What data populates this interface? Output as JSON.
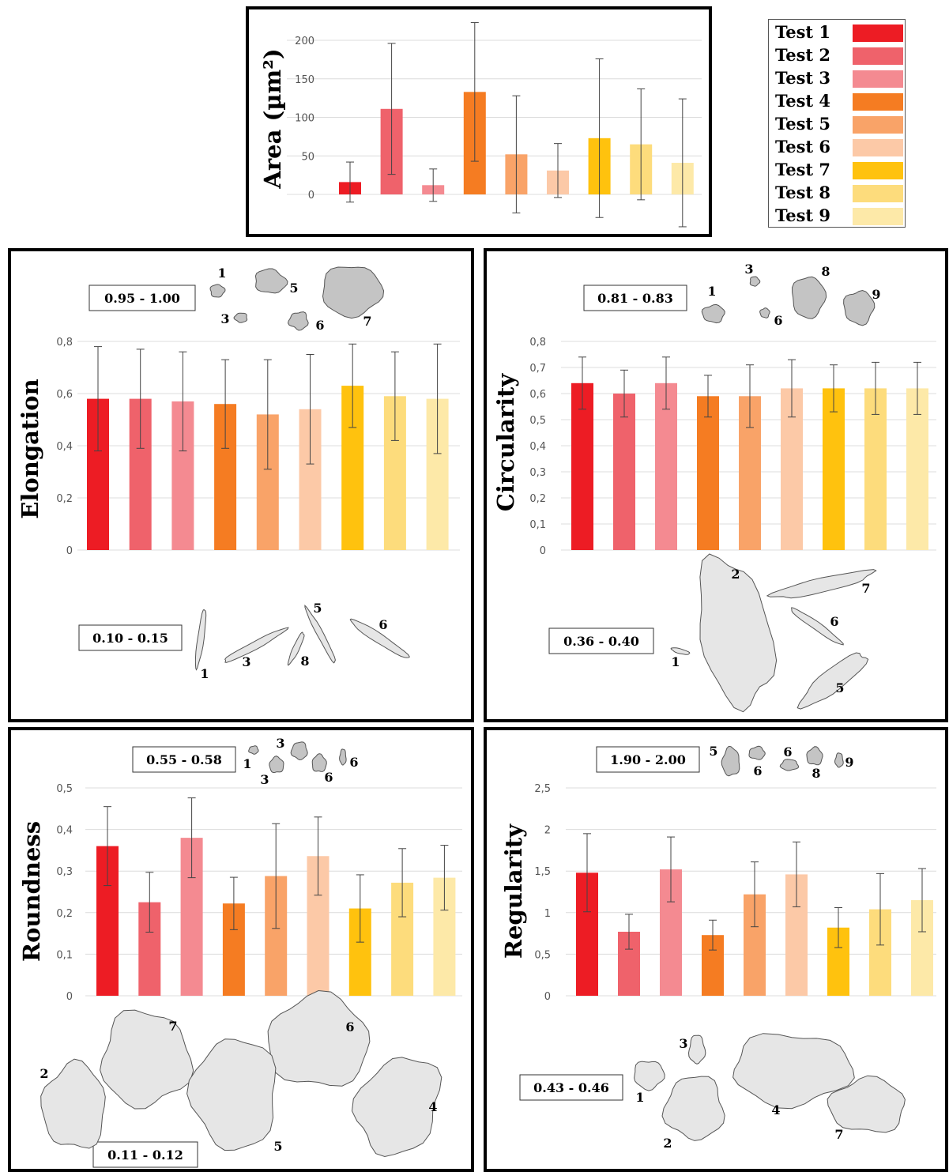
{
  "colors": [
    "#ed1c24",
    "#ef626b",
    "#f48a91",
    "#f57c22",
    "#f9a368",
    "#fcc9a7",
    "#ffc20e",
    "#fddc7c",
    "#fde9a8"
  ],
  "legend": [
    "Test 1",
    "Test 2",
    "Test 3",
    "Test 4",
    "Test 5",
    "Test 6",
    "Test 7",
    "Test 8",
    "Test 9"
  ],
  "chart_data": [
    {
      "type": "bar",
      "ylabel": "Area (µm²)",
      "categories": [
        "Test 1",
        "Test 2",
        "Test 3",
        "Test 4",
        "Test 5",
        "Test 6",
        "Test 7",
        "Test 8",
        "Test 9"
      ],
      "values": [
        16,
        111,
        12,
        133,
        52,
        31,
        73,
        65,
        41
      ],
      "errors": [
        26,
        85,
        21,
        90,
        76,
        35,
        103,
        72,
        83
      ],
      "ylim": [
        0,
        200
      ],
      "yticks": [
        "0",
        "50",
        "100",
        "150",
        "200"
      ]
    },
    {
      "type": "bar",
      "ylabel": "Elongation",
      "categories": [
        "Test 1",
        "Test 2",
        "Test 3",
        "Test 4",
        "Test 5",
        "Test 6",
        "Test 7",
        "Test 8",
        "Test 9"
      ],
      "values": [
        0.58,
        0.58,
        0.57,
        0.56,
        0.52,
        0.54,
        0.63,
        0.59,
        0.58
      ],
      "errors": [
        0.2,
        0.19,
        0.19,
        0.17,
        0.21,
        0.21,
        0.16,
        0.17,
        0.21
      ],
      "ylim": [
        0,
        0.8
      ],
      "yticks": [
        "0",
        "0,2",
        "0,4",
        "0,6",
        "0,8"
      ],
      "annotations": {
        "top_range": "0.95 - 1.00",
        "bottom_range": "0.10 - 0.15",
        "top_ids": [
          "1",
          "5",
          "3",
          "6",
          "7"
        ],
        "bottom_ids": [
          "1",
          "3",
          "5",
          "8",
          "6"
        ]
      }
    },
    {
      "type": "bar",
      "ylabel": "Circularity",
      "categories": [
        "Test 1",
        "Test 2",
        "Test 3",
        "Test 4",
        "Test 5",
        "Test 6",
        "Test 7",
        "Test 8",
        "Test 9"
      ],
      "values": [
        0.64,
        0.6,
        0.64,
        0.59,
        0.59,
        0.62,
        0.62,
        0.62,
        0.62
      ],
      "errors": [
        0.1,
        0.09,
        0.1,
        0.08,
        0.12,
        0.11,
        0.09,
        0.1,
        0.1
      ],
      "ylim": [
        0,
        0.8
      ],
      "yticks": [
        "0",
        "0,1",
        "0,2",
        "0,3",
        "0,4",
        "0,5",
        "0,6",
        "0,7",
        "0,8"
      ],
      "annotations": {
        "top_range": "0.81 - 0.83",
        "bottom_range": "0.36 - 0.40",
        "top_ids": [
          "3",
          "8",
          "1",
          "6",
          "9"
        ],
        "bottom_ids": [
          "2",
          "7",
          "6",
          "1",
          "5"
        ]
      }
    },
    {
      "type": "bar",
      "ylabel": "Roundness",
      "categories": [
        "Test 1",
        "Test 2",
        "Test 3",
        "Test 4",
        "Test 5",
        "Test 6",
        "Test 7",
        "Test 8",
        "Test 9"
      ],
      "values": [
        0.36,
        0.225,
        0.38,
        0.222,
        0.288,
        0.336,
        0.21,
        0.272,
        0.284
      ],
      "errors": [
        0.095,
        0.072,
        0.096,
        0.063,
        0.126,
        0.094,
        0.081,
        0.082,
        0.078
      ],
      "ylim": [
        0,
        0.5
      ],
      "yticks": [
        "0",
        "0,1",
        "0,2",
        "0,3",
        "0,4",
        "0,5"
      ],
      "annotations": {
        "top_range": "0.55 - 0.58",
        "bottom_range": "0.11 - 0.12",
        "top_ids": [
          "1",
          "3",
          "3",
          "6",
          "6"
        ],
        "bottom_ids": [
          "7",
          "6",
          "2",
          "4",
          "5"
        ]
      }
    },
    {
      "type": "bar",
      "ylabel": "Regularity",
      "categories": [
        "Test 1",
        "Test 2",
        "Test 3",
        "Test 4",
        "Test 5",
        "Test 6",
        "Test 7",
        "Test 8",
        "Test 9"
      ],
      "values": [
        1.48,
        0.77,
        1.52,
        0.73,
        1.22,
        1.46,
        0.82,
        1.04,
        1.15
      ],
      "errors": [
        0.47,
        0.21,
        0.39,
        0.18,
        0.39,
        0.39,
        0.24,
        0.43,
        0.38
      ],
      "ylim": [
        0,
        2.5
      ],
      "yticks": [
        "0",
        "0,5",
        "1",
        "1,5",
        "2",
        "2,5"
      ],
      "annotations": {
        "top_range": "1.90 - 2.00",
        "bottom_range": "0.43 - 0.46",
        "top_ids": [
          "5",
          "6",
          "6",
          "8",
          "9"
        ],
        "bottom_ids": [
          "3",
          "1",
          "4",
          "2",
          "7"
        ]
      }
    }
  ]
}
